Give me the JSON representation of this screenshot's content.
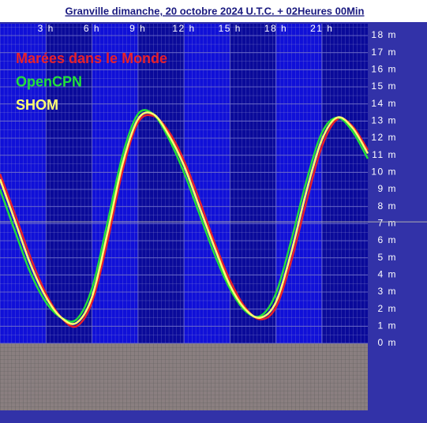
{
  "chart_data": {
    "type": "line",
    "title": "Granville dimanche, 20 octobre 2024 U.T.C. + 02Heures 00Min",
    "x": [
      0,
      1,
      2,
      3,
      4,
      5,
      6,
      7,
      8,
      9,
      10,
      11,
      12,
      13,
      14,
      15,
      16,
      17,
      18,
      19,
      20,
      21,
      22,
      23,
      24
    ],
    "series": [
      {
        "name": "Marées dans le Monde",
        "color": "#e8202a",
        "values": [
          9.9,
          7.5,
          5.0,
          2.9,
          1.5,
          1.0,
          2.4,
          5.9,
          10.1,
          12.9,
          13.3,
          12.4,
          10.7,
          8.4,
          5.9,
          3.7,
          2.1,
          1.4,
          2.1,
          4.8,
          8.3,
          11.5,
          13.1,
          12.7,
          11.3
        ]
      },
      {
        "name": "OpenCPN",
        "color": "#22e03a",
        "values": [
          9.0,
          6.5,
          4.1,
          2.4,
          1.5,
          1.4,
          3.2,
          7.0,
          11.0,
          13.4,
          13.4,
          12.0,
          10.0,
          7.6,
          5.2,
          3.2,
          1.9,
          1.6,
          2.9,
          6.0,
          9.5,
          12.3,
          13.2,
          12.4,
          10.8
        ]
      },
      {
        "name": "SHOM",
        "color": "#ffff70",
        "values": [
          9.6,
          7.1,
          4.6,
          2.7,
          1.5,
          1.2,
          2.7,
          6.4,
          10.5,
          13.1,
          13.4,
          12.2,
          10.4,
          8.0,
          5.6,
          3.4,
          2.0,
          1.5,
          2.4,
          5.3,
          8.9,
          11.9,
          13.2,
          12.6,
          11.1
        ]
      }
    ],
    "xlim": [
      0,
      24
    ],
    "xticks": [
      {
        "value": 3,
        "label": "3 h"
      },
      {
        "value": 6,
        "label": "6 h"
      },
      {
        "value": 9,
        "label": "9 h"
      },
      {
        "value": 12,
        "label": "12 h"
      },
      {
        "value": 15,
        "label": "15 h"
      },
      {
        "value": 18,
        "label": "18 h"
      },
      {
        "value": 21,
        "label": "21 h"
      }
    ],
    "ylim": [
      0,
      18
    ],
    "yticks": [
      {
        "value": 0,
        "label": "0 m"
      },
      {
        "value": 1,
        "label": "1 m"
      },
      {
        "value": 2,
        "label": "2 m"
      },
      {
        "value": 3,
        "label": "3 m"
      },
      {
        "value": 4,
        "label": "4 m"
      },
      {
        "value": 5,
        "label": "5 m"
      },
      {
        "value": 6,
        "label": "6 m"
      },
      {
        "value": 7,
        "label": "7 m"
      },
      {
        "value": 8,
        "label": "8 m"
      },
      {
        "value": 9,
        "label": "9 m"
      },
      {
        "value": 10,
        "label": "10 m"
      },
      {
        "value": 11,
        "label": "11 m"
      },
      {
        "value": 12,
        "label": "12 m"
      },
      {
        "value": 13,
        "label": "13 m"
      },
      {
        "value": 14,
        "label": "14 m"
      },
      {
        "value": 15,
        "label": "15 m"
      },
      {
        "value": 16,
        "label": "16 m"
      },
      {
        "value": 17,
        "label": "17 m"
      },
      {
        "value": 18,
        "label": "18 m"
      }
    ],
    "reference_line": 7.1,
    "grid": true
  }
}
